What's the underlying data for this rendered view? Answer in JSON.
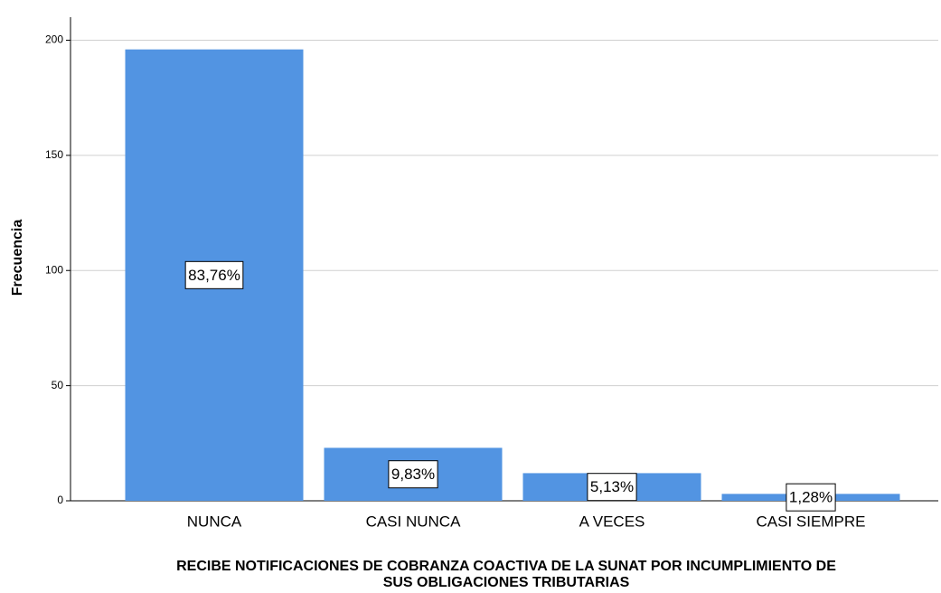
{
  "chart_data": {
    "type": "bar",
    "ylabel": "Frecuencia",
    "xlabel_lines": [
      "RECIBE NOTIFICACIONES DE COBRANZA COACTIVA DE LA SUNAT POR INCUMPLIMIENTO DE",
      "SUS OBLIGACIONES TRIBUTARIAS"
    ],
    "categories": [
      "NUNCA",
      "CASI NUNCA",
      "A VECES",
      "CASI SIEMPRE"
    ],
    "values": [
      196,
      23,
      12,
      3
    ],
    "percent_values": [
      83.76,
      9.83,
      5.13,
      1.28
    ],
    "percent_labels": [
      "83,76%",
      "9,83%",
      "5,13%",
      "1,28%"
    ],
    "color": "#5294e2",
    "ylim": [
      0,
      210
    ],
    "yticks": [
      0,
      50,
      100,
      150,
      200
    ],
    "grid": true
  }
}
